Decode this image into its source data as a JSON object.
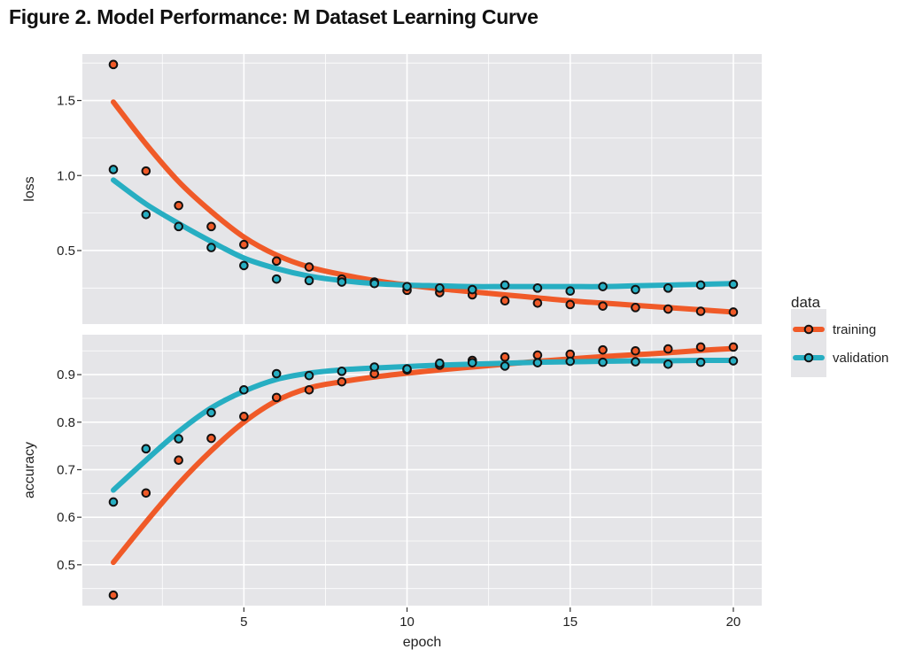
{
  "title": "Figure 2. Model Performance: M Dataset Learning Curve",
  "colors": {
    "training": "#f05a28",
    "validation": "#27aec2",
    "panel_bg": "#e5e5e8",
    "grid": "#ffffff",
    "point_outline": "#111111"
  },
  "chart_data": {
    "type": "line",
    "title": "Figure 2. Model Performance: M Dataset Learning Curve",
    "xlabel": "epoch",
    "x": [
      1,
      2,
      3,
      4,
      5,
      6,
      7,
      8,
      9,
      10,
      11,
      12,
      13,
      14,
      15,
      16,
      17,
      18,
      19,
      20
    ],
    "xlim": [
      0.05,
      20.87
    ],
    "xticks": [
      5,
      10,
      15,
      20
    ],
    "xtick_labels": [
      "5",
      "10",
      "15",
      "20"
    ],
    "x_minor": [
      2.5,
      7.5,
      12.5,
      17.5
    ],
    "grid": true,
    "legend": {
      "title": "data",
      "position": "right",
      "entries": [
        "training",
        "validation"
      ]
    },
    "panels": [
      {
        "ylabel": "loss",
        "ylim": [
          0.01,
          1.81
        ],
        "yticks": [
          0.5,
          1.0,
          1.5
        ],
        "ytick_labels": [
          "0.5",
          "1.0",
          "1.5"
        ],
        "y_minor": [
          0.25,
          0.75,
          1.25,
          1.75
        ],
        "series": [
          {
            "name": "training",
            "points": [
              1.74,
              1.03,
              0.8,
              0.66,
              0.54,
              0.43,
              0.39,
              0.31,
              0.29,
              0.235,
              0.22,
              0.205,
              0.165,
              0.15,
              0.14,
              0.13,
              0.12,
              0.11,
              0.095,
              0.09
            ],
            "fit": [
              1.49,
              1.21,
              0.96,
              0.76,
              0.59,
              0.47,
              0.39,
              0.34,
              0.3,
              0.27,
              0.245,
              0.225,
              0.205,
              0.185,
              0.165,
              0.15,
              0.135,
              0.12,
              0.105,
              0.09
            ]
          },
          {
            "name": "validation",
            "points": [
              1.04,
              0.74,
              0.66,
              0.52,
              0.4,
              0.31,
              0.3,
              0.29,
              0.28,
              0.26,
              0.25,
              0.24,
              0.27,
              0.25,
              0.23,
              0.26,
              0.24,
              0.25,
              0.27,
              0.275
            ],
            "fit": [
              0.97,
              0.81,
              0.68,
              0.56,
              0.45,
              0.38,
              0.33,
              0.3,
              0.28,
              0.27,
              0.265,
              0.26,
              0.26,
              0.26,
              0.26,
              0.26,
              0.265,
              0.27,
              0.275,
              0.28
            ]
          }
        ]
      },
      {
        "ylabel": "accuracy",
        "ylim": [
          0.414,
          0.984
        ],
        "yticks": [
          0.5,
          0.6,
          0.7,
          0.8,
          0.9
        ],
        "ytick_labels": [
          "0.5",
          "0.6",
          "0.7",
          "0.8",
          "0.9"
        ],
        "y_minor": [
          0.45,
          0.55,
          0.65,
          0.75,
          0.85,
          0.95
        ],
        "series": [
          {
            "name": "training",
            "points": [
              0.436,
              0.651,
              0.72,
              0.766,
              0.812,
              0.852,
              0.868,
              0.885,
              0.902,
              0.91,
              0.92,
              0.93,
              0.937,
              0.941,
              0.943,
              0.952,
              0.95,
              0.954,
              0.958,
              0.958
            ],
            "fit": [
              0.505,
              0.59,
              0.67,
              0.74,
              0.8,
              0.845,
              0.872,
              0.885,
              0.895,
              0.903,
              0.91,
              0.916,
              0.922,
              0.928,
              0.933,
              0.938,
              0.942,
              0.946,
              0.951,
              0.955
            ]
          },
          {
            "name": "validation",
            "points": [
              0.632,
              0.744,
              0.765,
              0.82,
              0.868,
              0.902,
              0.898,
              0.907,
              0.916,
              0.912,
              0.924,
              0.925,
              0.918,
              0.925,
              0.928,
              0.926,
              0.927,
              0.922,
              0.926,
              0.929
            ],
            "fit": [
              0.657,
              0.72,
              0.78,
              0.83,
              0.865,
              0.89,
              0.903,
              0.91,
              0.914,
              0.917,
              0.92,
              0.922,
              0.924,
              0.926,
              0.927,
              0.928,
              0.929,
              0.929,
              0.93,
              0.93
            ]
          }
        ]
      }
    ]
  }
}
